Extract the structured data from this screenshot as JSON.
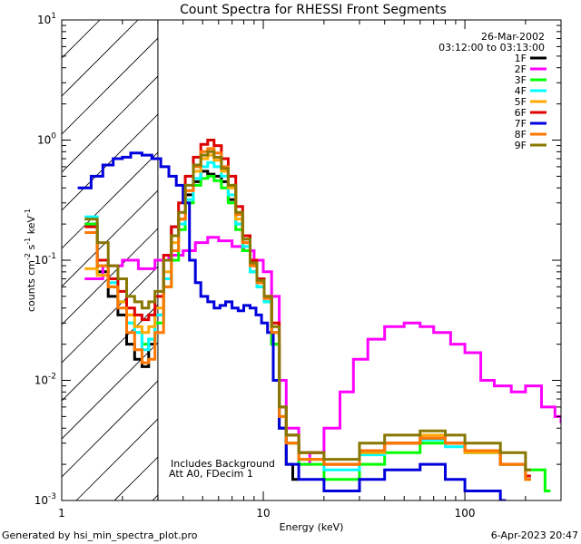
{
  "chart_data": {
    "type": "line",
    "title": "Count Spectra for RHESSI Front Segments",
    "xlabel": "Energy (keV)",
    "ylabel": "counts cm⁻² s⁻¹ keV⁻¹",
    "ylabel_parts": {
      "base": "counts cm",
      "exp1": "-2",
      "mid": " s",
      "exp2": "-1",
      "unit": " keV",
      "exp3": "-1"
    },
    "xscale": "log",
    "yscale": "log",
    "xlim": [
      1,
      300
    ],
    "ylim": [
      0.001,
      10
    ],
    "x_ticks": [
      {
        "value": 1,
        "label": "1"
      },
      {
        "value": 10,
        "label": "10"
      },
      {
        "value": 100,
        "label": "100"
      }
    ],
    "y_ticks": [
      {
        "value": 0.001,
        "base": "10",
        "exp": "-3"
      },
      {
        "value": 0.01,
        "base": "10",
        "exp": "-2"
      },
      {
        "value": 0.1,
        "base": "10",
        "exp": "-1"
      },
      {
        "value": 1,
        "base": "10",
        "exp": "0"
      },
      {
        "value": 10,
        "base": "10",
        "exp": "1"
      }
    ],
    "date_label": "26-Mar-2002",
    "time_label": "03:12:00 to 03:13:00",
    "shaded_region": {
      "xmin": 1,
      "xmax": 3
    },
    "annotations": [
      "Includes Background",
      "Att A0, FDecim 1"
    ],
    "footer_left": "Generated by hsi_min_spectra_plot.pro",
    "footer_right": "6-Apr-2023 20:47",
    "legend_position": "top-right",
    "series": [
      {
        "name": "1F",
        "color": "#000000",
        "x": [
          1.3,
          1.5,
          1.7,
          1.9,
          2.1,
          2.3,
          2.5,
          2.7,
          2.9,
          3.2,
          3.5,
          3.8,
          4.1,
          4.5,
          4.9,
          5.3,
          5.7,
          6.2,
          6.7,
          7.3,
          7.9,
          8.6,
          9.3,
          10.1,
          11,
          12,
          13,
          14
        ],
        "y": [
          0.2,
          0.08,
          0.05,
          0.035,
          0.02,
          0.015,
          0.013,
          0.02,
          0.035,
          0.1,
          0.19,
          0.22,
          0.35,
          0.45,
          0.55,
          0.52,
          0.5,
          0.45,
          0.32,
          0.2,
          0.12,
          0.08,
          0.06,
          0.045,
          0.02,
          0.004,
          0.002,
          0.0015
        ]
      },
      {
        "name": "2F",
        "color": "#ff00ff",
        "x": [
          1.3,
          1.6,
          2,
          2.4,
          2.9,
          3.4,
          4,
          4.6,
          5.3,
          6,
          7,
          8,
          9,
          10,
          11,
          12,
          13,
          15,
          17,
          20,
          24,
          28,
          33,
          40,
          50,
          60,
          70,
          85,
          100,
          120,
          140,
          170,
          200,
          240,
          280,
          300
        ],
        "y": [
          0.07,
          0.09,
          0.1,
          0.085,
          0.1,
          0.11,
          0.12,
          0.14,
          0.155,
          0.145,
          0.13,
          0.12,
          0.1,
          0.08,
          0.05,
          0.01,
          0.004,
          0.002,
          0.0025,
          0.004,
          0.008,
          0.015,
          0.022,
          0.028,
          0.03,
          0.028,
          0.025,
          0.02,
          0.017,
          0.01,
          0.009,
          0.008,
          0.009,
          0.006,
          0.005,
          0.0045
        ]
      },
      {
        "name": "3F",
        "color": "#00ff00",
        "x": [
          1.3,
          1.5,
          1.7,
          1.9,
          2.1,
          2.3,
          2.5,
          2.7,
          2.9,
          3.2,
          3.5,
          3.8,
          4.1,
          4.5,
          4.9,
          5.3,
          5.7,
          6.2,
          6.7,
          7.3,
          7.9,
          8.6,
          9.3,
          10.1,
          11,
          12,
          13,
          15,
          20,
          30,
          40,
          60,
          80,
          100,
          150,
          200,
          250
        ],
        "y": [
          0.2,
          0.09,
          0.06,
          0.045,
          0.03,
          0.025,
          0.02,
          0.022,
          0.03,
          0.06,
          0.1,
          0.18,
          0.3,
          0.42,
          0.48,
          0.5,
          0.46,
          0.4,
          0.3,
          0.18,
          0.12,
          0.08,
          0.06,
          0.045,
          0.02,
          0.005,
          0.003,
          0.002,
          0.0015,
          0.002,
          0.0025,
          0.003,
          0.003,
          0.0025,
          0.002,
          0.0018,
          0.0012
        ]
      },
      {
        "name": "4F",
        "color": "#00ffff",
        "x": [
          1.3,
          1.5,
          1.7,
          1.9,
          2.1,
          2.3,
          2.5,
          2.7,
          2.9,
          3.2,
          3.5,
          3.8,
          4.1,
          4.5,
          4.9,
          5.3,
          5.7,
          6.2,
          6.7,
          7.3,
          7.9,
          8.6,
          9.3,
          10.1,
          11,
          12,
          13,
          15,
          20,
          30,
          40,
          60,
          80,
          100,
          150,
          200
        ],
        "y": [
          0.23,
          0.1,
          0.065,
          0.045,
          0.03,
          0.025,
          0.018,
          0.022,
          0.035,
          0.07,
          0.12,
          0.2,
          0.32,
          0.48,
          0.6,
          0.65,
          0.6,
          0.5,
          0.35,
          0.2,
          0.13,
          0.08,
          0.06,
          0.045,
          0.025,
          0.006,
          0.003,
          0.0022,
          0.0018,
          0.0024,
          0.003,
          0.0032,
          0.0028,
          0.0025,
          0.002,
          0.0015
        ]
      },
      {
        "name": "5F",
        "color": "#ffaa00",
        "x": [
          1.3,
          1.5,
          1.7,
          1.9,
          2.1,
          2.3,
          2.5,
          2.7,
          2.9,
          3.2,
          3.5,
          3.8,
          4.1,
          4.5,
          4.9,
          5.3,
          5.7,
          6.2,
          6.7,
          7.3,
          7.9,
          8.6,
          9.3,
          10.1,
          11,
          12,
          13,
          15,
          20,
          30,
          40,
          60,
          80,
          100,
          150,
          200
        ],
        "y": [
          0.085,
          0.075,
          0.06,
          0.045,
          0.035,
          0.028,
          0.025,
          0.028,
          0.04,
          0.08,
          0.14,
          0.22,
          0.38,
          0.55,
          0.7,
          0.75,
          0.68,
          0.55,
          0.4,
          0.22,
          0.14,
          0.09,
          0.065,
          0.05,
          0.025,
          0.005,
          0.003,
          0.0022,
          0.002,
          0.0025,
          0.003,
          0.0035,
          0.003,
          0.0025,
          0.002,
          0.0015
        ]
      },
      {
        "name": "6F",
        "color": "#dd0000",
        "x": [
          1.3,
          1.5,
          1.7,
          1.9,
          2.1,
          2.3,
          2.5,
          2.7,
          2.9,
          3.2,
          3.5,
          3.8,
          4.1,
          4.5,
          4.9,
          5.3,
          5.7,
          6.2,
          6.7,
          7.3,
          7.9,
          8.6,
          9.3,
          10.1,
          11,
          12,
          13,
          15,
          20,
          30,
          40,
          60,
          80,
          100,
          150,
          200
        ],
        "y": [
          0.19,
          0.1,
          0.07,
          0.055,
          0.04,
          0.035,
          0.032,
          0.035,
          0.05,
          0.11,
          0.19,
          0.3,
          0.5,
          0.72,
          0.92,
          1.0,
          0.9,
          0.7,
          0.5,
          0.28,
          0.16,
          0.1,
          0.07,
          0.05,
          0.03,
          0.006,
          0.0035,
          0.0025,
          0.002,
          0.0026,
          0.003,
          0.0033,
          0.003,
          0.0026,
          0.002,
          0.0016
        ]
      },
      {
        "name": "7F",
        "color": "#0000dd",
        "x": [
          1.2,
          1.4,
          1.6,
          1.8,
          2.0,
          2.2,
          2.5,
          2.8,
          3.1,
          3.4,
          3.7,
          4.0,
          4.3,
          4.6,
          4.9,
          5.3,
          5.7,
          6.1,
          6.5,
          7.0,
          7.5,
          8.0,
          8.6,
          9.2,
          9.8,
          10.5,
          11.2,
          12,
          13,
          15,
          20,
          30,
          40,
          60,
          80,
          100,
          150
        ],
        "y": [
          0.4,
          0.5,
          0.62,
          0.7,
          0.72,
          0.78,
          0.75,
          0.7,
          0.6,
          0.5,
          0.42,
          0.3,
          0.1,
          0.065,
          0.05,
          0.045,
          0.04,
          0.042,
          0.045,
          0.04,
          0.038,
          0.042,
          0.04,
          0.035,
          0.03,
          0.025,
          0.01,
          0.004,
          0.002,
          0.0015,
          0.0012,
          0.0015,
          0.0018,
          0.002,
          0.0015,
          0.0012,
          0.001
        ]
      },
      {
        "name": "8F",
        "color": "#ff7700",
        "x": [
          1.3,
          1.5,
          1.7,
          1.9,
          2.1,
          2.3,
          2.5,
          2.7,
          2.9,
          3.2,
          3.5,
          3.8,
          4.1,
          4.5,
          4.9,
          5.3,
          5.7,
          6.2,
          6.7,
          7.3,
          7.9,
          8.6,
          9.3,
          10.1,
          11,
          12,
          13,
          15,
          20,
          30,
          40,
          60,
          80,
          100,
          150,
          200
        ],
        "y": [
          0.17,
          0.09,
          0.06,
          0.04,
          0.025,
          0.018,
          0.014,
          0.015,
          0.025,
          0.06,
          0.12,
          0.22,
          0.38,
          0.6,
          0.8,
          0.85,
          0.78,
          0.6,
          0.42,
          0.24,
          0.14,
          0.09,
          0.065,
          0.048,
          0.025,
          0.005,
          0.003,
          0.0022,
          0.002,
          0.0026,
          0.003,
          0.0033,
          0.003,
          0.0026,
          0.002,
          0.0015
        ]
      },
      {
        "name": "9F",
        "color": "#887700",
        "x": [
          1.3,
          1.5,
          1.7,
          1.9,
          2.1,
          2.3,
          2.5,
          2.7,
          2.9,
          3.2,
          3.5,
          3.8,
          4.1,
          4.5,
          4.9,
          5.3,
          5.7,
          6.2,
          6.7,
          7.3,
          7.9,
          8.6,
          9.3,
          10.1,
          11,
          12,
          13,
          15,
          20,
          30,
          40,
          60,
          80,
          100,
          150,
          200
        ],
        "y": [
          0.22,
          0.14,
          0.09,
          0.07,
          0.05,
          0.045,
          0.04,
          0.045,
          0.055,
          0.1,
          0.16,
          0.25,
          0.42,
          0.62,
          0.75,
          0.8,
          0.72,
          0.58,
          0.42,
          0.25,
          0.15,
          0.095,
          0.068,
          0.05,
          0.028,
          0.006,
          0.0035,
          0.0025,
          0.0022,
          0.003,
          0.0035,
          0.0038,
          0.0035,
          0.003,
          0.0025,
          0.0018
        ]
      }
    ]
  }
}
